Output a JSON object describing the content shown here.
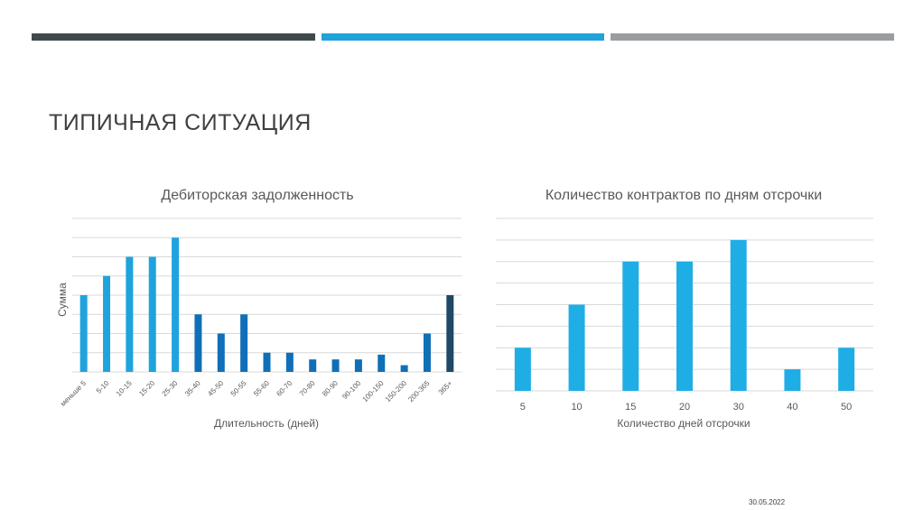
{
  "slide": {
    "title": "ТИПИЧНАЯ СИТУАЦИЯ",
    "date": "30.05.2022",
    "top_bars": [
      "#3f4a4d",
      "#1fa3d9",
      "#9a9da0"
    ]
  },
  "chart_data": [
    {
      "type": "bar",
      "title": "Дебиторская задолженность",
      "xlabel": "Длительность (дней)",
      "ylabel": "Сумма",
      "categories": [
        "меньше 5",
        "5-10",
        "10-15",
        "15-20",
        "25-30",
        "35-40",
        "45-50",
        "50-55",
        "55-60",
        "60-70",
        "70-80",
        "80-90",
        "90-100",
        "100-150",
        "150-200",
        "200-365",
        "365+"
      ],
      "values": [
        4,
        5,
        6,
        6,
        7,
        3,
        2,
        3,
        1,
        1,
        0.65,
        0.65,
        0.65,
        0.9,
        0.35,
        2,
        4
      ],
      "bar_colors": [
        "#1fa3dc",
        "#1fa3dc",
        "#1fa3dc",
        "#1fa3dc",
        "#1fa3dc",
        "#0f6fb7",
        "#0f6fb7",
        "#0f6fb7",
        "#0f6fb7",
        "#0f6fb7",
        "#0f6fb7",
        "#0f6fb7",
        "#0f6fb7",
        "#0f6fb7",
        "#0f6fb7",
        "#0f6fb7",
        "#1d4866"
      ],
      "ylim": [
        0,
        8
      ],
      "grid": true
    },
    {
      "type": "bar",
      "title": "Количество контрактов по дням отсрочки",
      "xlabel": "Количество дней отсрочки",
      "categories": [
        "5",
        "10",
        "15",
        "20",
        "30",
        "40",
        "50"
      ],
      "values": [
        2,
        4,
        6,
        6,
        7,
        1,
        2
      ],
      "bar_colors": [
        "#1fade6",
        "#1fade6",
        "#1fade6",
        "#1fade6",
        "#1fade6",
        "#1fade6",
        "#1fade6"
      ],
      "ylim": [
        0,
        8
      ],
      "grid": true
    }
  ]
}
